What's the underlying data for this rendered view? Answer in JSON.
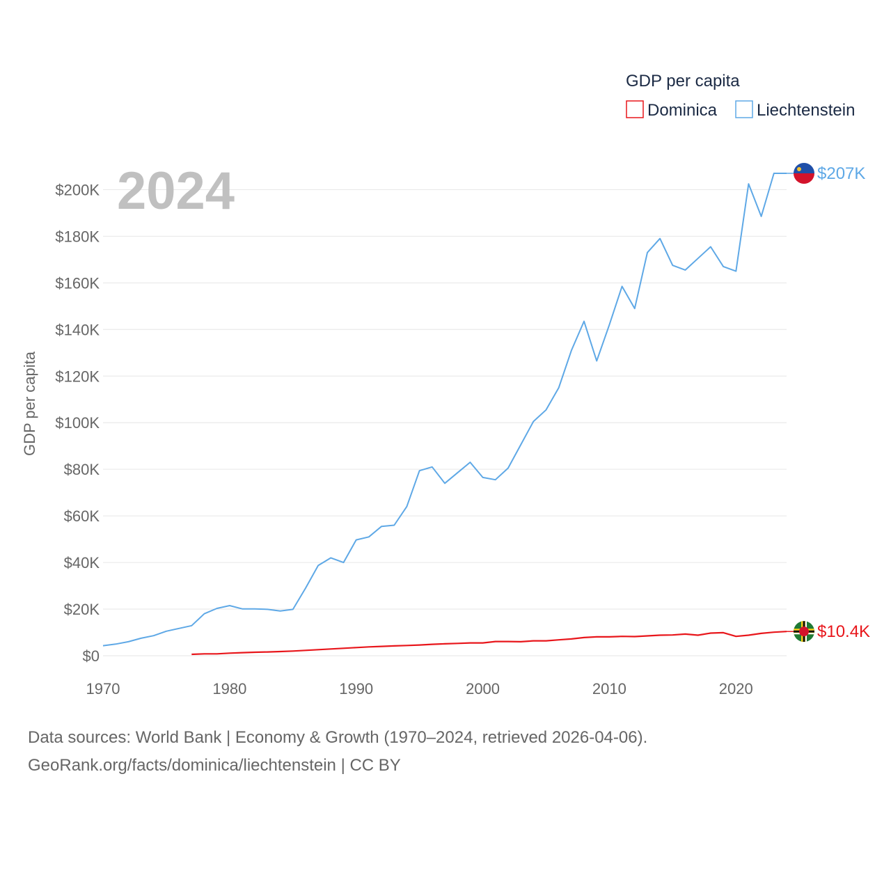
{
  "chart_data": {
    "type": "line",
    "title": "GDP per capita",
    "ylabel": "GDP per capita",
    "xlabel": "",
    "year_display": "2024",
    "xlim": [
      1970,
      2024
    ],
    "ylim": [
      0,
      207000
    ],
    "x_ticks": [
      1970,
      1980,
      1990,
      2000,
      2010,
      2020
    ],
    "y_ticks": [
      {
        "value": 0,
        "label": "$0"
      },
      {
        "value": 20000,
        "label": "$20K"
      },
      {
        "value": 40000,
        "label": "$40K"
      },
      {
        "value": 60000,
        "label": "$60K"
      },
      {
        "value": 80000,
        "label": "$80K"
      },
      {
        "value": 100000,
        "label": "$100K"
      },
      {
        "value": 120000,
        "label": "$120K"
      },
      {
        "value": 140000,
        "label": "$140K"
      },
      {
        "value": 160000,
        "label": "$160K"
      },
      {
        "value": 180000,
        "label": "$180K"
      },
      {
        "value": 200000,
        "label": "$200K"
      }
    ],
    "legend_position": "top-right",
    "series": [
      {
        "name": "Dominica",
        "color": "#e8161b",
        "end_label": "$10.4K",
        "flag": "dominica-flag",
        "x": [
          1977,
          1978,
          1979,
          1980,
          1981,
          1982,
          1983,
          1984,
          1985,
          1986,
          1987,
          1988,
          1989,
          1990,
          1991,
          1992,
          1993,
          1994,
          1995,
          1996,
          1997,
          1998,
          1999,
          2000,
          2001,
          2002,
          2003,
          2004,
          2005,
          2006,
          2007,
          2008,
          2009,
          2010,
          2011,
          2012,
          2013,
          2014,
          2015,
          2016,
          2017,
          2018,
          2019,
          2020,
          2021,
          2022,
          2023,
          2024
        ],
        "values": [
          600,
          800,
          800,
          1100,
          1300,
          1500,
          1600,
          1800,
          2000,
          2300,
          2600,
          2900,
          3200,
          3500,
          3800,
          4000,
          4200,
          4400,
          4600,
          4900,
          5100,
          5300,
          5500,
          5500,
          6100,
          6100,
          6000,
          6400,
          6400,
          6800,
          7200,
          7800,
          8100,
          8100,
          8300,
          8200,
          8500,
          8800,
          8900,
          9300,
          8800,
          9700,
          9900,
          8300,
          8800,
          9600,
          10100,
          10400
        ]
      },
      {
        "name": "Liechtenstein",
        "color": "#5ea8e6",
        "end_label": "$207K",
        "flag": "liechtenstein-flag",
        "x": [
          1970,
          1971,
          1972,
          1973,
          1974,
          1975,
          1976,
          1977,
          1978,
          1979,
          1980,
          1981,
          1982,
          1983,
          1984,
          1985,
          1986,
          1987,
          1988,
          1989,
          1990,
          1991,
          1992,
          1993,
          1994,
          1995,
          1996,
          1997,
          1998,
          1999,
          2000,
          2001,
          2002,
          2003,
          2004,
          2005,
          2006,
          2007,
          2008,
          2009,
          2010,
          2011,
          2012,
          2013,
          2014,
          2015,
          2016,
          2017,
          2018,
          2019,
          2020,
          2021,
          2022,
          2023,
          2024
        ],
        "values": [
          4300,
          5000,
          6000,
          7500,
          8600,
          10500,
          11700,
          12900,
          18000,
          20300,
          21500,
          20100,
          20100,
          19900,
          19200,
          19900,
          29000,
          38700,
          42000,
          40000,
          49700,
          51000,
          55500,
          56000,
          64000,
          79400,
          81000,
          74000,
          78500,
          83000,
          76500,
          75500,
          80500,
          90500,
          100500,
          105500,
          115000,
          131000,
          143500,
          126500,
          142000,
          158500,
          149000,
          173000,
          179000,
          167500,
          165500,
          170500,
          175500,
          167000,
          165000,
          202500,
          188500,
          207000,
          207000
        ]
      }
    ]
  },
  "legend": {
    "title": "GDP per capita",
    "items": [
      "Dominica",
      "Liechtenstein"
    ]
  },
  "source": {
    "line1": "Data sources: World Bank | Economy & Growth (1970–2024, retrieved 2026-04-06).",
    "line2": "GeoRank.org/facts/dominica/liechtenstein | CC BY"
  }
}
